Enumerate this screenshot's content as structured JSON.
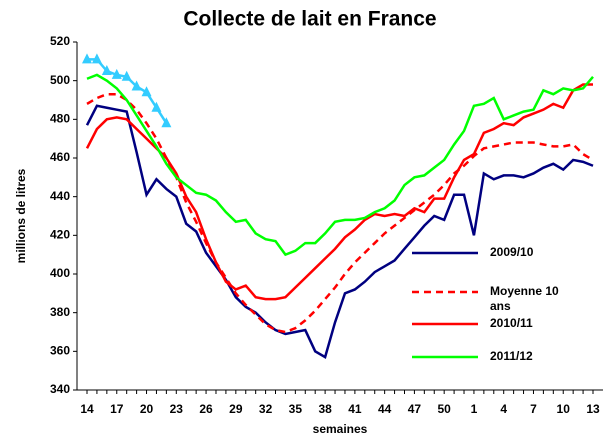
{
  "chart_data": {
    "type": "line",
    "title": "Collecte de lait en France",
    "y_label": "millions de litres",
    "x_label": "semaines",
    "categories": [
      14,
      null,
      null,
      17,
      null,
      null,
      20,
      null,
      null,
      23,
      null,
      null,
      26,
      null,
      null,
      29,
      null,
      null,
      32,
      null,
      null,
      35,
      null,
      null,
      38,
      null,
      null,
      41,
      null,
      null,
      44,
      null,
      null,
      47,
      null,
      null,
      50,
      null,
      null,
      1,
      null,
      null,
      4,
      null,
      null,
      7,
      null,
      null,
      10,
      null,
      null,
      13
    ],
    "ylim": [
      340,
      520
    ],
    "yticks": [
      340,
      360,
      380,
      400,
      420,
      440,
      460,
      480,
      500,
      520
    ],
    "grid": false,
    "legend": "right",
    "series": [
      {
        "name": "2009/10",
        "color": "#000080",
        "values": [
          477,
          487,
          486,
          485,
          484,
          463,
          441,
          449,
          444,
          440,
          426,
          422,
          411,
          404,
          397,
          388,
          383,
          380,
          375,
          371,
          369,
          370,
          371,
          360,
          357,
          375,
          390,
          392,
          396,
          401,
          404,
          407,
          413,
          419,
          425,
          430,
          428,
          441,
          441,
          420,
          452,
          449,
          451,
          451,
          450,
          452,
          455,
          457,
          454,
          459,
          458,
          456
        ]
      },
      {
        "name": "Moyenne 10 ans",
        "color": "#ff0000",
        "dash": true,
        "values": [
          488,
          491,
          493,
          493,
          490,
          485,
          478,
          470,
          460,
          450,
          437,
          427,
          416,
          406,
          398,
          390,
          384,
          379,
          374,
          371,
          370,
          372,
          376,
          381,
          387,
          393,
          400,
          406,
          411,
          416,
          421,
          425,
          429,
          433,
          437,
          441,
          446,
          452,
          456,
          461,
          465,
          466,
          467,
          468,
          468,
          468,
          467,
          466,
          466,
          467,
          462,
          459
        ]
      },
      {
        "name": "2010/11",
        "color": "#ff0000",
        "values": [
          465,
          475,
          480,
          481,
          480,
          475,
          470,
          465,
          460,
          452,
          440,
          432,
          418,
          406,
          396,
          392,
          394,
          388,
          387,
          387,
          388,
          393,
          398,
          403,
          408,
          413,
          419,
          423,
          428,
          431,
          430,
          431,
          430,
          434,
          432,
          439,
          439,
          450,
          459,
          462,
          473,
          475,
          478,
          477,
          481,
          483,
          485,
          488,
          486,
          495,
          498,
          498
        ]
      },
      {
        "name": "2011/12",
        "color": "#00ff00",
        "values": [
          501,
          503,
          500,
          496,
          490,
          482,
          474,
          466,
          457,
          450,
          446,
          442,
          441,
          438,
          432,
          427,
          428,
          421,
          418,
          417,
          410,
          412,
          416,
          416,
          421,
          427,
          428,
          428,
          429,
          432,
          434,
          438,
          446,
          450,
          451,
          455,
          459,
          467,
          474,
          487,
          488,
          491,
          480,
          482,
          484,
          485,
          495,
          493,
          496,
          495,
          496,
          502
        ]
      },
      {
        "color": "#33ccff",
        "marker": "triangle",
        "values": [
          511,
          511,
          505,
          503,
          502,
          497,
          494,
          486,
          478,
          null,
          null,
          null,
          null,
          null,
          null,
          null,
          null,
          null,
          null,
          null,
          null,
          null,
          null,
          null,
          null,
          null,
          null,
          null,
          null,
          null,
          null,
          null,
          null,
          null,
          null,
          null,
          null,
          null,
          null,
          null,
          null,
          null,
          null,
          null,
          null,
          null,
          null,
          null,
          null,
          null,
          null,
          null
        ]
      }
    ]
  }
}
